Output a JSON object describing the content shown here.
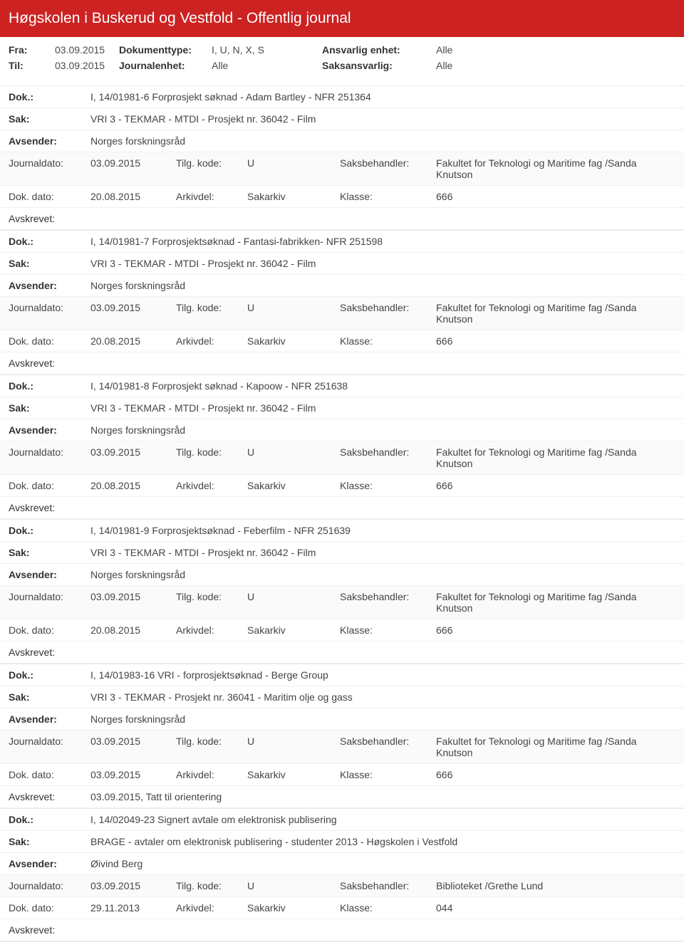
{
  "header": {
    "title": "Høgskolen i Buskerud og Vestfold - Offentlig journal"
  },
  "filters": {
    "fra_label": "Fra:",
    "fra_value": "03.09.2015",
    "til_label": "Til:",
    "til_value": "03.09.2015",
    "doktype_label": "Dokumenttype:",
    "doktype_value": "I, U, N, X, S",
    "journalenhet_label": "Journalenhet:",
    "journalenhet_value": "Alle",
    "ansvarlig_label": "Ansvarlig enhet:",
    "ansvarlig_value": "Alle",
    "saksansvarlig_label": "Saksansvarlig:",
    "saksansvarlig_value": "Alle"
  },
  "labels": {
    "dok": "Dok.:",
    "sak": "Sak:",
    "avsender": "Avsender:",
    "journaldato": "Journaldato:",
    "tilgkode": "Tilg. kode:",
    "saksbehandler": "Saksbehandler:",
    "dokdato": "Dok. dato:",
    "arkivdel": "Arkivdel:",
    "klasse": "Klasse:",
    "avskrevet": "Avskrevet:"
  },
  "entries": [
    {
      "dok": "I, 14/01981-6 Forprosjekt søknad - Adam Bartley - NFR 251364",
      "sak": "VRI 3 - TEKMAR - MTDI - Prosjekt nr. 36042 - Film",
      "avsender": "Norges forskningsråd",
      "journaldato": "03.09.2015",
      "tilgkode": "U",
      "saksbehandler": "Fakultet for Teknologi og Maritime fag /Sanda Knutson",
      "dokdato": "20.08.2015",
      "arkivdel": "Sakarkiv",
      "klasse": "666",
      "avskrevet": ""
    },
    {
      "dok": "I, 14/01981-7 Forprosjektsøknad - Fantasi-fabrikken- NFR 251598",
      "sak": "VRI 3 - TEKMAR - MTDI - Prosjekt nr. 36042 - Film",
      "avsender": "Norges forskningsråd",
      "journaldato": "03.09.2015",
      "tilgkode": "U",
      "saksbehandler": "Fakultet for Teknologi og Maritime fag /Sanda Knutson",
      "dokdato": "20.08.2015",
      "arkivdel": "Sakarkiv",
      "klasse": "666",
      "avskrevet": ""
    },
    {
      "dok": "I, 14/01981-8 Forprosjekt søknad - Kapoow - NFR 251638",
      "sak": "VRI 3 - TEKMAR - MTDI - Prosjekt nr. 36042 - Film",
      "avsender": "Norges forskningsråd",
      "journaldato": "03.09.2015",
      "tilgkode": "U",
      "saksbehandler": "Fakultet for Teknologi og Maritime fag /Sanda Knutson",
      "dokdato": "20.08.2015",
      "arkivdel": "Sakarkiv",
      "klasse": "666",
      "avskrevet": ""
    },
    {
      "dok": "I, 14/01981-9 Forprosjektsøknad -  Feberfilm - NFR 251639",
      "sak": "VRI 3 - TEKMAR - MTDI - Prosjekt nr. 36042 - Film",
      "avsender": "Norges forskningsråd",
      "journaldato": "03.09.2015",
      "tilgkode": "U",
      "saksbehandler": "Fakultet for Teknologi og Maritime fag /Sanda Knutson",
      "dokdato": "20.08.2015",
      "arkivdel": "Sakarkiv",
      "klasse": "666",
      "avskrevet": ""
    },
    {
      "dok": "I, 14/01983-16 VRI - forprosjektsøknad - Berge Group",
      "sak": "VRI 3 - TEKMAR - Prosjekt nr. 36041 - Maritim olje og gass",
      "avsender": "Norges forskningsråd",
      "journaldato": "03.09.2015",
      "tilgkode": "U",
      "saksbehandler": "Fakultet for Teknologi og Maritime fag /Sanda Knutson",
      "dokdato": "03.09.2015",
      "arkivdel": "Sakarkiv",
      "klasse": "666",
      "avskrevet": "03.09.2015, Tatt til orientering"
    },
    {
      "dok": "I, 14/02049-23 Signert avtale om elektronisk publisering",
      "sak": "BRAGE - avtaler om elektronisk publisering - studenter 2013 - Høgskolen i Vestfold",
      "avsender": "Øivind Berg",
      "journaldato": "03.09.2015",
      "tilgkode": "U",
      "saksbehandler": "Biblioteket /Grethe Lund",
      "dokdato": "29.11.2013",
      "arkivdel": "Sakarkiv",
      "klasse": "044",
      "avskrevet": ""
    }
  ]
}
